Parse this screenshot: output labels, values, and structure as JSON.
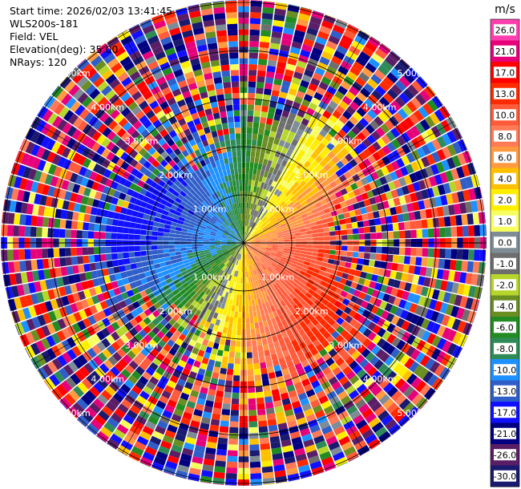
{
  "header": {
    "start_time": "Start time: 2026/02/03 13:41:45",
    "instrument": "WLS200s-181",
    "field": "Field: VEL",
    "elevation": "Elevation(deg): 35.00",
    "nrays": "NRays: 120"
  },
  "chart_data": {
    "type": "heatmap",
    "projection": "polar-ppi",
    "field": "VEL",
    "units": "m/s",
    "elevation_deg": 35.0,
    "nrays": 120,
    "range_rings_km": [
      1.0,
      2.0,
      3.0,
      4.0,
      5.0
    ],
    "ring_labels": [
      "1.00km",
      "2.00km",
      "3.00km",
      "4.00km",
      "5.00km"
    ],
    "max_range_km": 5.4,
    "colorbar": {
      "unit_label": "m/s",
      "ticks": [
        "26.0",
        "21.0",
        "17.0",
        "13.0",
        "10.0",
        "8.0",
        "6.0",
        "4.0",
        "2.0",
        "1.0",
        "0.0",
        "-1.0",
        "-2.0",
        "-4.0",
        "-6.0",
        "-8.0",
        "-10.0",
        "-13.0",
        "-17.0",
        "-21.0",
        "-26.0",
        "-30.0"
      ],
      "colors": [
        "#ff3fae",
        "#e6007a",
        "#ff0000",
        "#ff2a00",
        "#ff5a3a",
        "#ff7a55",
        "#ff9a40",
        "#ffc000",
        "#ffee00",
        "#f7ff60",
        "#7e8c96",
        "#6e6e6e",
        "#b6d62c",
        "#6b8e23",
        "#228b22",
        "#2e8b57",
        "#1e90ff",
        "#2f5ec9",
        "#1010ff",
        "#000080",
        "#5a1e66",
        "#1a1a6e"
      ]
    },
    "ray_pattern_description": "Near field (<~2.3km): smooth velocity pattern; blue/negative toward upper-left, green/yellow along NE diagonal, orange/red positive toward lower-right; outer ranges show noisy random colors."
  }
}
